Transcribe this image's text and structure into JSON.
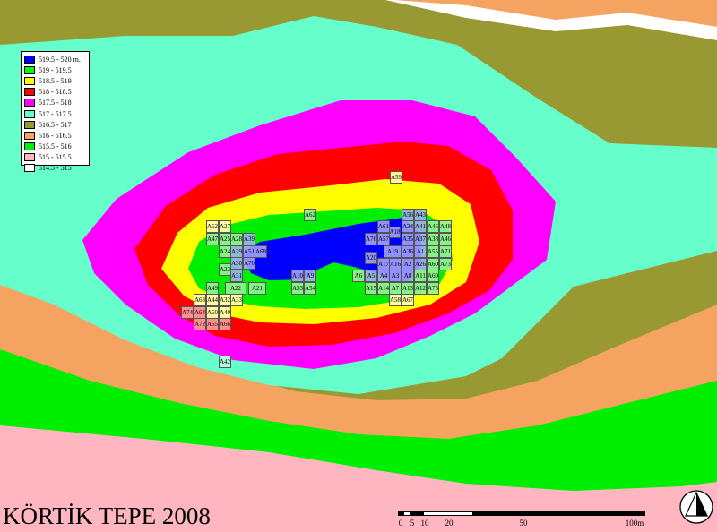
{
  "title": "KÖRTİK TEPE 2008",
  "legend": [
    {
      "label": "519.5 - 520 m.",
      "color": "#0000ff"
    },
    {
      "label": "519 - 519.5",
      "color": "#00ff00"
    },
    {
      "label": "518.5 - 519",
      "color": "#ffff00"
    },
    {
      "label": "518 - 518.5",
      "color": "#ff0000"
    },
    {
      "label": "517.5 - 518",
      "color": "#ff00ff"
    },
    {
      "label": "517 - 517.5",
      "color": "#66ffcc"
    },
    {
      "label": "516.5 - 517",
      "color": "#999933"
    },
    {
      "label": "516 - 516.5",
      "color": "#f4a460"
    },
    {
      "label": "515.5 - 516",
      "color": "#00ee00"
    },
    {
      "label": "515 - 515.5",
      "color": "#ffb6c1"
    },
    {
      "label": "514.5 - 515",
      "color": "#ffffff"
    }
  ],
  "scale": {
    "ticks": [
      "0",
      "5",
      "10",
      "20",
      "50",
      "100m"
    ]
  },
  "north_arrow": "north-arrow-icon",
  "units": [
    {
      "label": "A59",
      "tone": "yellow"
    },
    {
      "label": "A62",
      "tone": "green"
    },
    {
      "label": "A56",
      "tone": "blue"
    },
    {
      "label": "A43",
      "tone": "blue"
    },
    {
      "label": "A52",
      "tone": "yellow"
    },
    {
      "label": "A27",
      "tone": "yellow"
    },
    {
      "label": "A61",
      "tone": "blue"
    },
    {
      "label": "A34",
      "tone": "blue"
    },
    {
      "label": "A41",
      "tone": "blue"
    },
    {
      "label": "A45",
      "tone": "green"
    },
    {
      "label": "A48",
      "tone": "green"
    },
    {
      "label": "A18",
      "tone": "blue"
    },
    {
      "label": "A47",
      "tone": "green"
    },
    {
      "label": "A25",
      "tone": "green"
    },
    {
      "label": "A28",
      "tone": "green"
    },
    {
      "label": "A39",
      "tone": "blue"
    },
    {
      "label": "A76",
      "tone": "blue"
    },
    {
      "label": "A57",
      "tone": "blue"
    },
    {
      "label": "A35",
      "tone": "blue"
    },
    {
      "label": "A37",
      "tone": "blue"
    },
    {
      "label": "A38",
      "tone": "green"
    },
    {
      "label": "A46",
      "tone": "green"
    },
    {
      "label": "A24",
      "tone": "green"
    },
    {
      "label": "A29",
      "tone": "blue"
    },
    {
      "label": "A51",
      "tone": "blue"
    },
    {
      "label": "A68",
      "tone": "blue"
    },
    {
      "label": "A19",
      "tone": "blue"
    },
    {
      "label": "A36",
      "tone": "blue"
    },
    {
      "label": "A1",
      "tone": "blue"
    },
    {
      "label": "A55",
      "tone": "green"
    },
    {
      "label": "A71",
      "tone": "green"
    },
    {
      "label": "A30",
      "tone": "blue"
    },
    {
      "label": "A70",
      "tone": "blue"
    },
    {
      "label": "A20",
      "tone": "blue"
    },
    {
      "label": "A17",
      "tone": "blue"
    },
    {
      "label": "A16",
      "tone": "blue"
    },
    {
      "label": "A2",
      "tone": "blue"
    },
    {
      "label": "A26",
      "tone": "blue"
    },
    {
      "label": "A60",
      "tone": "green"
    },
    {
      "label": "A73",
      "tone": "green"
    },
    {
      "label": "A23",
      "tone": "green"
    },
    {
      "label": "A31",
      "tone": "blue"
    },
    {
      "label": "A10",
      "tone": "blue"
    },
    {
      "label": "A9",
      "tone": "blue"
    },
    {
      "label": "A6",
      "tone": "green"
    },
    {
      "label": "A5",
      "tone": "blue"
    },
    {
      "label": "A4",
      "tone": "blue"
    },
    {
      "label": "A3",
      "tone": "blue"
    },
    {
      "label": "A8",
      "tone": "blue"
    },
    {
      "label": "A11",
      "tone": "green"
    },
    {
      "label": "A69",
      "tone": "green"
    },
    {
      "label": "A49",
      "tone": "green"
    },
    {
      "label": "A22",
      "tone": "green"
    },
    {
      "label": "A21",
      "tone": "green"
    },
    {
      "label": "A53",
      "tone": "green"
    },
    {
      "label": "A54",
      "tone": "green"
    },
    {
      "label": "A15",
      "tone": "green"
    },
    {
      "label": "A14",
      "tone": "green"
    },
    {
      "label": "A7",
      "tone": "green"
    },
    {
      "label": "A13",
      "tone": "green"
    },
    {
      "label": "A12",
      "tone": "green"
    },
    {
      "label": "A75",
      "tone": "green"
    },
    {
      "label": "A63",
      "tone": "yellow"
    },
    {
      "label": "A44",
      "tone": "yellow"
    },
    {
      "label": "A32",
      "tone": "yellow"
    },
    {
      "label": "A33",
      "tone": "yellow"
    },
    {
      "label": "A58",
      "tone": "yellow"
    },
    {
      "label": "A67",
      "tone": "yellow"
    },
    {
      "label": "A74",
      "tone": "red"
    },
    {
      "label": "A64",
      "tone": "red"
    },
    {
      "label": "A50",
      "tone": "yellow"
    },
    {
      "label": "A40",
      "tone": "yellow"
    },
    {
      "label": "A72",
      "tone": "red"
    },
    {
      "label": "A65",
      "tone": "red"
    },
    {
      "label": "A66",
      "tone": "red"
    },
    {
      "label": "A42",
      "tone": "teal"
    }
  ]
}
